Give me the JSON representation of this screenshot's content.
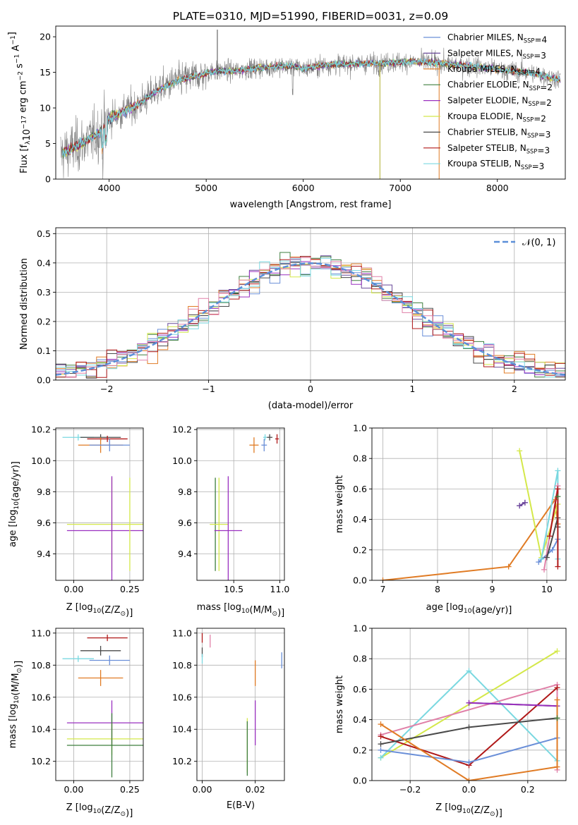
{
  "colors": {
    "chabrier_miles": "#6a8fd8",
    "salpeter_miles": "#6a4a9a",
    "kroupa_miles": "#e07b24",
    "chabrier_elodie": "#3f7f3f",
    "salpeter_elodie": "#9a30c0",
    "kroupa_elodie": "#d4e84a",
    "chabrier_stelib": "#4a4a4a",
    "salpeter_stelib": "#b01818",
    "kroupa_stelib": "#7ad8e0",
    "pink": "#e080a8",
    "normal": "#5b8fd8"
  },
  "chart_data": [
    {
      "id": "spectrum",
      "type": "line",
      "title": "PLATE=0310, MJD=51990, FIBERID=0031, z=0.09",
      "xlabel": "wavelength [Angstrom, rest frame]",
      "ylabel": "Flux [f",
      "ylabel_sub": "λ",
      "ylabel_rest": "10",
      "ylabel_exp1": "−17",
      "ylabel_mid": " erg cm",
      "ylabel_exp2": "−2",
      "ylabel_mid2": " s",
      "ylabel_exp3": "−1",
      "ylabel_mid3": " A",
      "ylabel_exp4": "−1",
      "ylabel_end": "]",
      "xlim": [
        3450,
        8700
      ],
      "ylim": [
        0,
        21.5
      ],
      "xticks": [
        4000,
        5000,
        6000,
        7000,
        8000
      ],
      "yticks": [
        0,
        5,
        10,
        15,
        20
      ],
      "legend_position": "upper-right",
      "legend": [
        {
          "label": "Chabrier MILES, N",
          "sub": "SSP",
          "val": "=4",
          "color": "#6a8fd8"
        },
        {
          "label": "Salpeter MILES, N",
          "sub": "SSP",
          "val": "=3",
          "color": "#6a4a9a"
        },
        {
          "label": "Kroupa MILES, N",
          "sub": "SSP",
          "val": "=4",
          "color": "#e07b24"
        },
        {
          "label": "Chabrier ELODIE, N",
          "sub": "SSP",
          "val": "=2",
          "color": "#3f7f3f"
        },
        {
          "label": "Salpeter ELODIE, N",
          "sub": "SSP",
          "val": "=2",
          "color": "#9a30c0"
        },
        {
          "label": "Kroupa ELODIE, N",
          "sub": "SSP",
          "val": "=2",
          "color": "#d4e84a"
        },
        {
          "label": "Chabrier STELIB, N",
          "sub": "SSP",
          "val": "=3",
          "color": "#4a4a4a"
        },
        {
          "label": "Salpeter STELIB, N",
          "sub": "SSP",
          "val": "=3",
          "color": "#b01818"
        },
        {
          "label": "Kroupa STELIB, N",
          "sub": "SSP",
          "val": "=3",
          "color": "#7ad8e0"
        }
      ],
      "continuum": [
        [
          3500,
          3.5
        ],
        [
          3700,
          4.8
        ],
        [
          3900,
          6.5
        ],
        [
          4000,
          8.5
        ],
        [
          4150,
          9.5
        ],
        [
          4300,
          10.5
        ],
        [
          4500,
          12.5
        ],
        [
          4700,
          13.8
        ],
        [
          4900,
          14.5
        ],
        [
          5100,
          15.2
        ],
        [
          5300,
          15.2
        ],
        [
          5500,
          15.6
        ],
        [
          5700,
          15.8
        ],
        [
          5900,
          15.9
        ],
        [
          6000,
          15.5
        ],
        [
          6200,
          16.0
        ],
        [
          6500,
          16.2
        ],
        [
          6800,
          16.3
        ],
        [
          7100,
          16.5
        ],
        [
          7400,
          16.3
        ],
        [
          7600,
          16.0
        ],
        [
          7800,
          15.8
        ],
        [
          8000,
          15.4
        ],
        [
          8300,
          15.0
        ],
        [
          8500,
          14.5
        ],
        [
          8650,
          14.0
        ]
      ],
      "spikes": [
        {
          "x": 6790,
          "ymin": 0,
          "ymax": 16.5,
          "color": "#b0b030"
        },
        {
          "x": 7400,
          "ymin": 0,
          "ymax": 16.0,
          "color": "#e07b24"
        },
        {
          "x": 5115,
          "ymin": 14.0,
          "ymax": 21.0,
          "color": "#4a4a4a"
        }
      ]
    },
    {
      "id": "residuals",
      "type": "histogram",
      "xlabel": "(data-model)/error",
      "ylabel": "Normed distribution",
      "xlim": [
        -2.5,
        2.5
      ],
      "ylim": [
        0,
        0.52
      ],
      "xticks": [
        -2,
        -1,
        0,
        1,
        2
      ],
      "xtick_labels": [
        "−2",
        "−1",
        "0",
        "1",
        "2"
      ],
      "yticks": [
        0.0,
        0.1,
        0.2,
        0.3,
        0.4,
        0.5
      ],
      "ytick_labels": [
        "0.0",
        "0.1",
        "0.2",
        "0.3",
        "0.4",
        "0.5"
      ],
      "legend_position": "upper-right",
      "legend_label": "𝒩(0, 1)",
      "bin_width": 0.1
    },
    {
      "id": "age_vs_Z",
      "type": "errorbar",
      "xlabel": "Z [log",
      "xlabel_sub": "10",
      "xlabel_rest": "(Z/Z",
      "xlabel_sun": "⊙",
      "xlabel_end": ")]",
      "ylabel": "age  [log",
      "ylabel_sub": "10",
      "ylabel_rest": "(age/yr)]",
      "xlim": [
        -0.08,
        0.31
      ],
      "ylim": [
        9.23,
        10.21
      ],
      "xticks": [
        0.0,
        0.25
      ],
      "xtick_labels": [
        "0.00",
        "0.25"
      ],
      "yticks": [
        9.4,
        9.6,
        9.8,
        10.0,
        10.2
      ],
      "ytick_labels": [
        "9.4",
        "9.6",
        "9.8",
        "10.0",
        "10.2"
      ],
      "points": [
        {
          "x": 0.02,
          "xerr": 0.07,
          "y": 10.15,
          "yerr": 0.02,
          "color": "#7ad8e0"
        },
        {
          "x": 0.12,
          "xerr": 0.09,
          "y": 10.15,
          "yerr": 0.02,
          "color": "#4a4a4a"
        },
        {
          "x": 0.15,
          "xerr": 0.09,
          "y": 10.14,
          "yerr": 0.02,
          "color": "#b01818"
        },
        {
          "x": 0.12,
          "xerr": 0.1,
          "y": 10.1,
          "yerr": 0.05,
          "color": "#e07b24"
        },
        {
          "x": 0.16,
          "xerr": 0.09,
          "y": 10.1,
          "yerr": 0.04,
          "color": "#6a8fd8"
        },
        {
          "x": 0.17,
          "xerr": 0.2,
          "y": 9.59,
          "yerr": 0.3,
          "color": "#d4e84a"
        },
        {
          "x": 0.17,
          "xerr": 0.2,
          "y": 9.55,
          "yerr": 0.35,
          "color": "#9a30c0"
        },
        {
          "x": 0.25,
          "xerr": 0.0,
          "y": 9.59,
          "yerr": 0.3,
          "color": "#d4e84a"
        }
      ]
    },
    {
      "id": "age_vs_mass",
      "type": "errorbar",
      "xlabel": "mass [log",
      "xlabel_sub": "10",
      "xlabel_rest": "(M/M",
      "xlabel_sun": "⊙",
      "xlabel_end": ")]",
      "xlim": [
        10.1,
        11.05
      ],
      "ylim": [
        9.23,
        10.21
      ],
      "xticks": [
        10.5,
        11.0
      ],
      "xtick_labels": [
        "10.5",
        "11.0"
      ],
      "yticks": [
        9.4,
        9.6,
        9.8,
        10.0,
        10.2
      ],
      "ytick_labels": [
        "9.4",
        "9.6",
        "9.8",
        "10.0",
        "10.2"
      ],
      "points": [
        {
          "x": 10.84,
          "xerr": 0.02,
          "y": 10.15,
          "yerr": 0.02,
          "color": "#7ad8e0"
        },
        {
          "x": 10.89,
          "xerr": 0.03,
          "y": 10.15,
          "yerr": 0.02,
          "color": "#4a4a4a"
        },
        {
          "x": 10.97,
          "xerr": 0.02,
          "y": 10.14,
          "yerr": 0.03,
          "color": "#b01818"
        },
        {
          "x": 10.72,
          "xerr": 0.05,
          "y": 10.1,
          "yerr": 0.05,
          "color": "#e07b24"
        },
        {
          "x": 10.83,
          "xerr": 0.03,
          "y": 10.1,
          "yerr": 0.04,
          "color": "#6a8fd8"
        },
        {
          "x": 10.3,
          "xerr": 0.0,
          "y": 9.59,
          "yerr": 0.3,
          "color": "#3f7f3f"
        },
        {
          "x": 10.34,
          "xerr": 0.1,
          "y": 9.59,
          "yerr": 0.3,
          "color": "#d4e84a"
        },
        {
          "x": 10.44,
          "xerr": 0.15,
          "y": 9.55,
          "yerr": 0.35,
          "color": "#9a30c0"
        }
      ]
    },
    {
      "id": "weight_vs_age",
      "type": "line",
      "xlabel": "age  [log",
      "xlabel_sub": "10",
      "xlabel_rest": "(age/yr)]",
      "ylabel": "mass weight",
      "xlim": [
        6.8,
        10.35
      ],
      "ylim": [
        0,
        1
      ],
      "xticks": [
        7,
        8,
        9,
        10
      ],
      "xtick_labels": [
        "7",
        "8",
        "9",
        "10"
      ],
      "yticks": [
        0.0,
        0.2,
        0.4,
        0.6,
        0.8,
        1.0
      ],
      "ytick_labels": [
        "0.0",
        "0.2",
        "0.4",
        "0.6",
        "0.8",
        "1.0"
      ],
      "series": [
        {
          "color": "#e07b24",
          "x": [
            7.0,
            9.3,
            10.15,
            10.2
          ],
          "y": [
            0.0,
            0.09,
            0.53,
            0.37
          ]
        },
        {
          "color": "#d4e84a",
          "x": [
            9.5,
            9.9,
            10.2
          ],
          "y": [
            0.85,
            0.15,
            0.5
          ]
        },
        {
          "color": "#9a30c0",
          "x": [
            9.5,
            9.6
          ],
          "y": [
            0.49,
            0.51
          ]
        },
        {
          "color": "#6a4a9a",
          "x": [
            9.5,
            9.6
          ],
          "y": [
            0.49,
            0.51
          ]
        },
        {
          "color": "#6a8fd8",
          "x": [
            9.85,
            10.1,
            10.2
          ],
          "y": [
            0.12,
            0.2,
            0.27
          ]
        },
        {
          "color": "#7ad8e0",
          "x": [
            9.9,
            10.2,
            10.2
          ],
          "y": [
            0.14,
            0.72,
            0.14
          ]
        },
        {
          "color": "#e080a8",
          "x": [
            9.95,
            10.2
          ],
          "y": [
            0.07,
            0.62
          ]
        },
        {
          "color": "#4a4a4a",
          "x": [
            10.0,
            10.2,
            10.2
          ],
          "y": [
            0.15,
            0.41,
            0.35
          ]
        },
        {
          "color": "#b01818",
          "x": [
            10.05,
            10.2,
            10.2
          ],
          "y": [
            0.29,
            0.6,
            0.09
          ]
        },
        {
          "color": "#3f7f3f",
          "x": [
            10.2
          ],
          "y": [
            0.55
          ]
        }
      ]
    },
    {
      "id": "mass_vs_Z",
      "type": "errorbar",
      "xlabel": "Z [log",
      "xlabel_sub": "10",
      "xlabel_rest": "(Z/Z",
      "xlabel_sun": "⊙",
      "xlabel_end": ")]",
      "ylabel": "mass [log",
      "ylabel_sub": "10",
      "ylabel_rest": "(M/M",
      "ylabel_sun": "⊙",
      "ylabel_end": ")]",
      "xlim": [
        -0.08,
        0.31
      ],
      "ylim": [
        10.08,
        11.03
      ],
      "xticks": [
        0.0,
        0.25
      ],
      "xtick_labels": [
        "0.00",
        "0.25"
      ],
      "yticks": [
        10.2,
        10.4,
        10.6,
        10.8,
        11.0
      ],
      "ytick_labels": [
        "10.2",
        "10.4",
        "10.6",
        "10.8",
        "11.0"
      ],
      "points": [
        {
          "x": 0.15,
          "xerr": 0.09,
          "y": 10.97,
          "yerr": 0.02,
          "color": "#b01818"
        },
        {
          "x": 0.12,
          "xerr": 0.09,
          "y": 10.89,
          "yerr": 0.03,
          "color": "#4a4a4a"
        },
        {
          "x": 0.02,
          "xerr": 0.07,
          "y": 10.84,
          "yerr": 0.02,
          "color": "#7ad8e0"
        },
        {
          "x": 0.16,
          "xerr": 0.09,
          "y": 10.83,
          "yerr": 0.03,
          "color": "#6a8fd8"
        },
        {
          "x": 0.12,
          "xerr": 0.1,
          "y": 10.72,
          "yerr": 0.05,
          "color": "#e07b24"
        },
        {
          "x": 0.17,
          "xerr": 0.2,
          "y": 10.44,
          "yerr": 0.14,
          "color": "#9a30c0"
        },
        {
          "x": 0.17,
          "xerr": 0.2,
          "y": 10.34,
          "yerr": 0.1,
          "color": "#d4e84a"
        },
        {
          "x": 0.17,
          "xerr": 0.2,
          "y": 10.3,
          "yerr": 0.2,
          "color": "#3f7f3f"
        }
      ]
    },
    {
      "id": "mass_vs_ebv",
      "type": "errorbar",
      "xlabel": "E(B-V)",
      "xlim": [
        -0.002,
        0.031
      ],
      "ylim": [
        10.08,
        11.03
      ],
      "xticks": [
        0.0,
        0.02
      ],
      "xtick_labels": [
        "0.00",
        "0.02"
      ],
      "yticks": [
        10.2,
        10.4,
        10.6,
        10.8,
        11.0
      ],
      "ytick_labels": [
        "10.2",
        "10.4",
        "10.6",
        "10.8",
        "11.0"
      ],
      "points": [
        {
          "x": 0.0,
          "y": 10.97,
          "yerr": 0.03,
          "color": "#b01818"
        },
        {
          "x": 0.0,
          "y": 10.88,
          "yerr": 0.03,
          "color": "#4a4a4a"
        },
        {
          "x": 0.003,
          "y": 10.95,
          "yerr": 0.04,
          "color": "#e080a8"
        },
        {
          "x": 0.0,
          "y": 10.84,
          "yerr": 0.03,
          "color": "#7ad8e0"
        },
        {
          "x": 0.03,
          "y": 10.83,
          "yerr": 0.05,
          "color": "#6a8fd8"
        },
        {
          "x": 0.02,
          "y": 10.75,
          "yerr": 0.08,
          "color": "#e07b24"
        },
        {
          "x": 0.02,
          "y": 10.44,
          "yerr": 0.14,
          "color": "#9a30c0"
        },
        {
          "x": 0.017,
          "y": 10.3,
          "yerr": 0.17,
          "color": "#d4e84a"
        },
        {
          "x": 0.017,
          "y": 10.28,
          "yerr": 0.17,
          "color": "#3f7f3f"
        }
      ]
    },
    {
      "id": "weight_vs_Z",
      "type": "line",
      "xlabel": "Z [log",
      "xlabel_sub": "10",
      "xlabel_rest": "(Z/Z",
      "xlabel_sun": "⊙",
      "xlabel_end": ")]",
      "ylabel": "mass weight",
      "xlim": [
        -0.33,
        0.33
      ],
      "ylim": [
        0,
        1
      ],
      "xticks": [
        -0.2,
        0.0,
        0.2
      ],
      "xtick_labels": [
        "−0.2",
        "0.0",
        "0.2"
      ],
      "yticks": [
        0.0,
        0.2,
        0.4,
        0.6,
        0.8,
        1.0
      ],
      "ytick_labels": [
        "0.0",
        "0.2",
        "0.4",
        "0.6",
        "0.8",
        "1.0"
      ],
      "series": [
        {
          "color": "#d4e84a",
          "x": [
            -0.3,
            0.3
          ],
          "y": [
            0.15,
            0.85
          ]
        },
        {
          "color": "#7ad8e0",
          "x": [
            -0.3,
            0.0,
            0.3
          ],
          "y": [
            0.15,
            0.72,
            0.13
          ]
        },
        {
          "color": "#e080a8",
          "x": [
            -0.3,
            0.3,
            0.3
          ],
          "y": [
            0.3,
            0.63,
            0.07
          ]
        },
        {
          "color": "#b01818",
          "x": [
            -0.3,
            0.0,
            0.3
          ],
          "y": [
            0.29,
            0.1,
            0.61
          ]
        },
        {
          "color": "#4a4a4a",
          "x": [
            -0.3,
            0.0,
            0.3
          ],
          "y": [
            0.24,
            0.35,
            0.41
          ]
        },
        {
          "color": "#4a4a4a",
          "x": [
            0.0,
            0.3
          ],
          "y": [
            0.51,
            0.49
          ]
        },
        {
          "color": "#9a30c0",
          "x": [
            0.0,
            0.3
          ],
          "y": [
            0.51,
            0.49
          ]
        },
        {
          "color": "#6a8fd8",
          "x": [
            -0.3,
            0.0,
            0.3
          ],
          "y": [
            0.2,
            0.12,
            0.28
          ]
        },
        {
          "color": "#e07b24",
          "x": [
            -0.3,
            0.0,
            0.3,
            0.3
          ],
          "y": [
            0.37,
            0.0,
            0.09,
            0.53
          ]
        },
        {
          "color": "#3f7f3f",
          "x": [
            0.3
          ],
          "y": [
            0.41
          ]
        }
      ]
    }
  ]
}
